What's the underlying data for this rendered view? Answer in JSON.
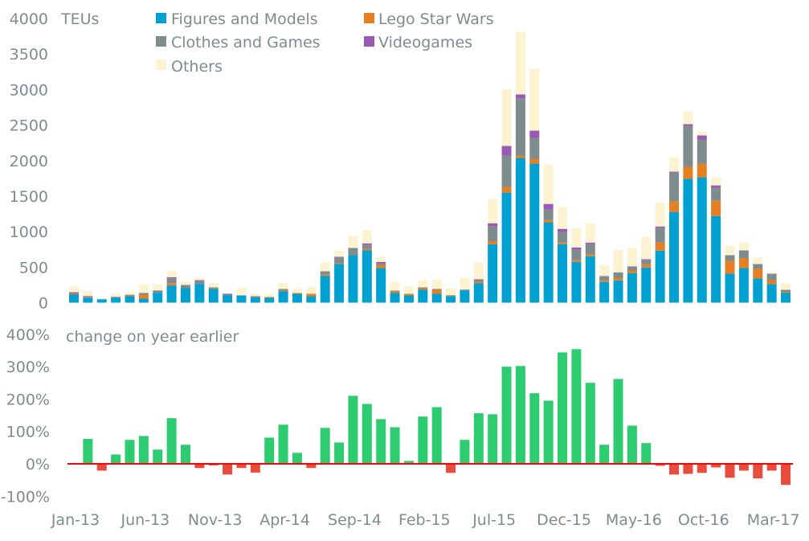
{
  "chart_data": [
    {
      "type": "bar",
      "stacked": true,
      "title": "",
      "ylabel": "TEUs",
      "xlabel": "",
      "ylim": [
        0,
        4000
      ],
      "yticks": [
        0,
        500,
        1000,
        1500,
        2000,
        2500,
        3000,
        3500,
        4000
      ],
      "grid": false,
      "legend_position": "top",
      "categories": [
        "Jan-13",
        "Feb-13",
        "Mar-13",
        "Apr-13",
        "May-13",
        "Jun-13",
        "Jul-13",
        "Aug-13",
        "Sep-13",
        "Oct-13",
        "Nov-13",
        "Dec-13",
        "Jan-14",
        "Feb-14",
        "Mar-14",
        "Apr-14",
        "May-14",
        "Jun-14",
        "Jul-14",
        "Aug-14",
        "Sep-14",
        "Oct-14",
        "Nov-14",
        "Dec-14",
        "Jan-15",
        "Feb-15",
        "Mar-15",
        "Apr-15",
        "May-15",
        "Jun-15",
        "Jul-15",
        "Aug-15",
        "Sep-15",
        "Oct-15",
        "Nov-15",
        "Dec-15",
        "Jan-16",
        "Feb-16",
        "Mar-16",
        "Apr-16",
        "May-16",
        "Jun-16",
        "Jul-16",
        "Aug-16",
        "Sep-16",
        "Oct-16",
        "Nov-16",
        "Dec-16",
        "Jan-17",
        "Feb-17",
        "Mar-17",
        "Apr-17"
      ],
      "series": [
        {
          "name": "Figures and Models",
          "color": "#00a0d0",
          "values": [
            113,
            72,
            49,
            72,
            90,
            57,
            140,
            242,
            204,
            261,
            196,
            106,
            102,
            68,
            68,
            159,
            125,
            91,
            378,
            544,
            668,
            736,
            487,
            136,
            102,
            181,
            125,
            94,
            174,
            272,
            823,
            1549,
            2036,
            1957,
            1130,
            823,
            574,
            654,
            291,
            314,
            416,
            495,
            733,
            1277,
            1742,
            1764,
            1220,
            408,
            487,
            340,
            261,
            136
          ]
        },
        {
          "name": "Lego Star Wars",
          "color": "#e67e22",
          "values": [
            11,
            11,
            0,
            0,
            11,
            56,
            0,
            33,
            0,
            0,
            8,
            0,
            0,
            0,
            11,
            11,
            11,
            34,
            19,
            11,
            0,
            20,
            45,
            23,
            23,
            23,
            56,
            12,
            0,
            23,
            43,
            79,
            34,
            68,
            34,
            23,
            23,
            26,
            23,
            37,
            37,
            45,
            113,
            147,
            170,
            193,
            216,
            181,
            136,
            136,
            56,
            11
          ]
        },
        {
          "name": "Clothes and Games",
          "color": "#7f8c8d",
          "values": [
            12,
            0,
            0,
            11,
            11,
            23,
            33,
            68,
            45,
            45,
            11,
            7,
            0,
            23,
            0,
            23,
            0,
            0,
            45,
            80,
            102,
            56,
            23,
            11,
            0,
            11,
            12,
            0,
            11,
            22,
            207,
            442,
            805,
            295,
            147,
            148,
            151,
            144,
            52,
            76,
            46,
            61,
            204,
            408,
            578,
            340,
            181,
            79,
            113,
            68,
            91,
            34
          ]
        },
        {
          "name": "Videogames",
          "color": "#9b59b6",
          "values": [
            11,
            11,
            0,
            0,
            0,
            0,
            0,
            16,
            0,
            11,
            0,
            12,
            0,
            0,
            0,
            0,
            0,
            0,
            0,
            11,
            0,
            23,
            19,
            0,
            0,
            0,
            0,
            0,
            0,
            12,
            45,
            136,
            56,
            101,
            79,
            45,
            30,
            22,
            8,
            0,
            11,
            11,
            23,
            12,
            22,
            57,
            34,
            0,
            0,
            0,
            0,
            0
          ]
        },
        {
          "name": "Others",
          "color": "#fcf3d1",
          "values": [
            83,
            76,
            21,
            45,
            38,
            117,
            88,
            88,
            49,
            34,
            61,
            4,
            106,
            37,
            38,
            90,
            57,
            90,
            125,
            91,
            170,
            188,
            72,
            125,
            105,
            102,
            135,
            98,
            166,
            238,
            340,
            797,
            884,
            873,
            556,
            306,
            272,
            272,
            155,
            317,
            257,
            314,
            340,
            204,
            182,
            56,
            113,
            136,
            114,
            90,
            23,
            91
          ]
        }
      ],
      "xticks_shown": [
        "Jan-13",
        "Jun-13",
        "Nov-13",
        "Apr-14",
        "Sep-14",
        "Feb-15",
        "Jul-15",
        "Dec-15",
        "May-16",
        "Oct-16",
        "Mar-17"
      ]
    },
    {
      "type": "bar",
      "title": "",
      "ylabel": "change on year earlier",
      "xlabel": "",
      "ylim": [
        -100,
        400
      ],
      "yticks": [
        -100,
        0,
        100,
        200,
        300,
        400
      ],
      "ytick_suffix": "%",
      "grid": false,
      "zero_line_color": "#ff0000",
      "positive_color": "#2ecc71",
      "negative_color": "#e74c3c",
      "values": [
        null,
        77,
        -21,
        29,
        74,
        86,
        44,
        141,
        59,
        -13,
        -5,
        -33,
        -13,
        -27,
        81,
        121,
        34,
        -13,
        111,
        66,
        210,
        185,
        138,
        113,
        9,
        146,
        175,
        -28,
        74,
        156,
        153,
        300,
        302,
        218,
        195,
        344,
        354,
        250,
        59,
        262,
        118,
        64,
        -6,
        -33,
        -31,
        -28,
        -11,
        -43,
        -21,
        -45,
        -21,
        -65
      ]
    }
  ]
}
